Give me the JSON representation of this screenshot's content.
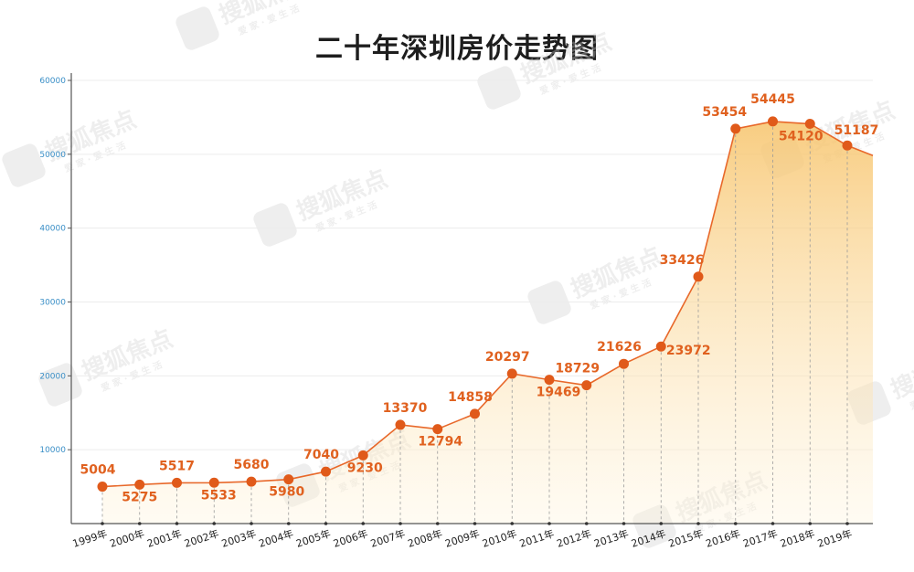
{
  "chart_data": {
    "type": "area",
    "title": "二十年深圳房价走势图",
    "xlabel": "",
    "ylabel": "",
    "categories": [
      "1999年",
      "2000年",
      "2001年",
      "2002年",
      "2003年",
      "2004年",
      "2005年",
      "2006年",
      "2007年",
      "2008年",
      "2009年",
      "2010年",
      "2011年",
      "2012年",
      "2013年",
      "2014年",
      "2015年",
      "2016年",
      "2017年",
      "2018年",
      "2019年"
    ],
    "values": [
      5004,
      5275,
      5517,
      5533,
      5680,
      5980,
      7040,
      9230,
      13370,
      12794,
      14858,
      20297,
      19469,
      18729,
      21626,
      23972,
      33426,
      53454,
      54445,
      54120,
      51187
    ],
    "ylim": [
      0,
      60000
    ],
    "yticks": [
      10000,
      20000,
      30000,
      40000,
      50000,
      60000
    ],
    "grid": true,
    "colors": {
      "line": "#e8682a",
      "marker": "#e05a1a",
      "label": "#e0611f",
      "fill_top": "#f7c46b",
      "fill_bottom": "#fff4dc"
    }
  },
  "watermark": {
    "brand": "搜狐焦点",
    "slogan": "爱 家 · 爱 生 活"
  }
}
